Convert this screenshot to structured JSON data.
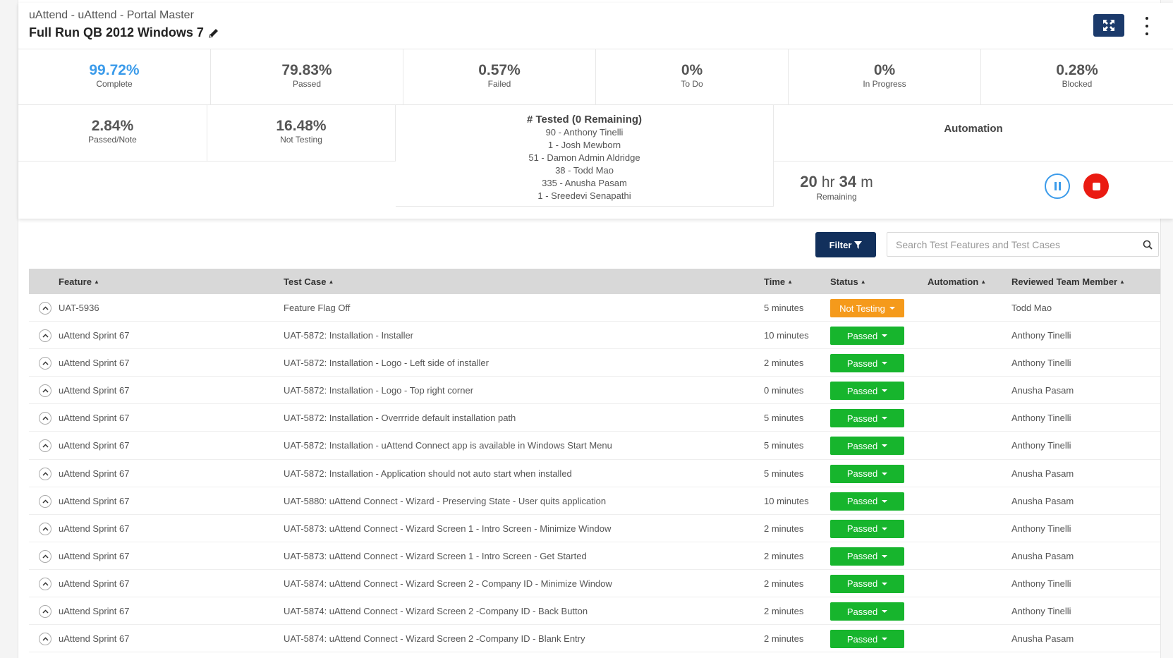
{
  "header": {
    "app_title": "uAttend - uAttend - Portal Master",
    "run_title": "Full Run QB 2012 Windows 7"
  },
  "stats": {
    "complete": {
      "value": "99.72%",
      "label": "Complete"
    },
    "passed": {
      "value": "79.83%",
      "label": "Passed"
    },
    "failed": {
      "value": "0.57%",
      "label": "Failed"
    },
    "todo": {
      "value": "0%",
      "label": "To Do"
    },
    "in_progress": {
      "value": "0%",
      "label": "In Progress"
    },
    "blocked": {
      "value": "0.28%",
      "label": "Blocked"
    },
    "passed_note": {
      "value": "2.84%",
      "label": "Passed/Note"
    },
    "not_testing": {
      "value": "16.48%",
      "label": "Not Testing"
    }
  },
  "tested": {
    "heading": "# Tested (0 Remaining)",
    "lines": [
      "90 - Anthony Tinelli",
      "1 - Josh Mewborn",
      "51 - Damon Admin Aldridge",
      "38 - Todd Mao",
      "335 - Anusha Pasam",
      "1 - Sreedevi Senapathi"
    ]
  },
  "automation": {
    "heading": "Automation",
    "hours": "20",
    "hours_unit": "hr",
    "minutes": "34",
    "minutes_unit": "m",
    "remaining_label": "Remaining"
  },
  "toolbar": {
    "filter_label": "Filter",
    "search_placeholder": "Search Test Features and Test Cases"
  },
  "colors": {
    "passed": "#17b52d",
    "not_testing": "#f59a1b",
    "primary_dark": "#12305c",
    "complete_blue": "#3b9bea",
    "stop_red": "#ea1b12"
  },
  "table": {
    "columns": [
      "Feature",
      "Test Case",
      "Time",
      "Status",
      "Automation",
      "Reviewed Team Member"
    ],
    "rows": [
      {
        "feature": "UAT-5936",
        "test_case": "Feature Flag Off",
        "time": "5 minutes",
        "status": "Not Testing",
        "status_type": "not-testing",
        "automation": "",
        "member": "Todd Mao"
      },
      {
        "feature": "uAttend Sprint 67",
        "test_case": "UAT-5872: Installation - Installer",
        "time": "10 minutes",
        "status": "Passed",
        "status_type": "passed",
        "automation": "",
        "member": "Anthony Tinelli"
      },
      {
        "feature": "uAttend Sprint 67",
        "test_case": "UAT-5872: Installation - Logo - Left side of installer",
        "time": "2 minutes",
        "status": "Passed",
        "status_type": "passed",
        "automation": "",
        "member": "Anthony Tinelli"
      },
      {
        "feature": "uAttend Sprint 67",
        "test_case": "UAT-5872: Installation - Logo - Top right corner",
        "time": "0 minutes",
        "status": "Passed",
        "status_type": "passed",
        "automation": "",
        "member": "Anusha Pasam"
      },
      {
        "feature": "uAttend Sprint 67",
        "test_case": "UAT-5872: Installation - Overrride default installation path",
        "time": "5 minutes",
        "status": "Passed",
        "status_type": "passed",
        "automation": "",
        "member": "Anthony Tinelli"
      },
      {
        "feature": "uAttend Sprint 67",
        "test_case": "UAT-5872: Installation - uAttend Connect app is available in Windows Start Menu",
        "time": "5 minutes",
        "status": "Passed",
        "status_type": "passed",
        "automation": "",
        "member": "Anthony Tinelli"
      },
      {
        "feature": "uAttend Sprint 67",
        "test_case": "UAT-5872: Installation - Application should not auto start when installed",
        "time": "5 minutes",
        "status": "Passed",
        "status_type": "passed",
        "automation": "",
        "member": "Anusha Pasam"
      },
      {
        "feature": "uAttend Sprint 67",
        "test_case": "UAT-5880: uAttend Connect - Wizard - Preserving State - User quits application",
        "time": "10 minutes",
        "status": "Passed",
        "status_type": "passed",
        "automation": "",
        "member": "Anusha Pasam"
      },
      {
        "feature": "uAttend Sprint 67",
        "test_case": "UAT-5873: uAttend Connect - Wizard Screen 1 - Intro Screen - Minimize Window",
        "time": "2 minutes",
        "status": "Passed",
        "status_type": "passed",
        "automation": "",
        "member": "Anthony Tinelli"
      },
      {
        "feature": "uAttend Sprint 67",
        "test_case": "UAT-5873: uAttend Connect - Wizard Screen 1 - Intro Screen - Get Started",
        "time": "2 minutes",
        "status": "Passed",
        "status_type": "passed",
        "automation": "",
        "member": "Anusha Pasam"
      },
      {
        "feature": "uAttend Sprint 67",
        "test_case": "UAT-5874: uAttend Connect - Wizard Screen 2 - Company ID - Minimize Window",
        "time": "2 minutes",
        "status": "Passed",
        "status_type": "passed",
        "automation": "",
        "member": "Anthony Tinelli"
      },
      {
        "feature": "uAttend Sprint 67",
        "test_case": "UAT-5874: uAttend Connect - Wizard Screen 2 -Company ID - Back Button",
        "time": "2 minutes",
        "status": "Passed",
        "status_type": "passed",
        "automation": "",
        "member": "Anthony Tinelli"
      },
      {
        "feature": "uAttend Sprint 67",
        "test_case": "UAT-5874: uAttend Connect - Wizard Screen 2 -Company ID - Blank Entry",
        "time": "2 minutes",
        "status": "Passed",
        "status_type": "passed",
        "automation": "",
        "member": "Anusha Pasam"
      }
    ]
  }
}
